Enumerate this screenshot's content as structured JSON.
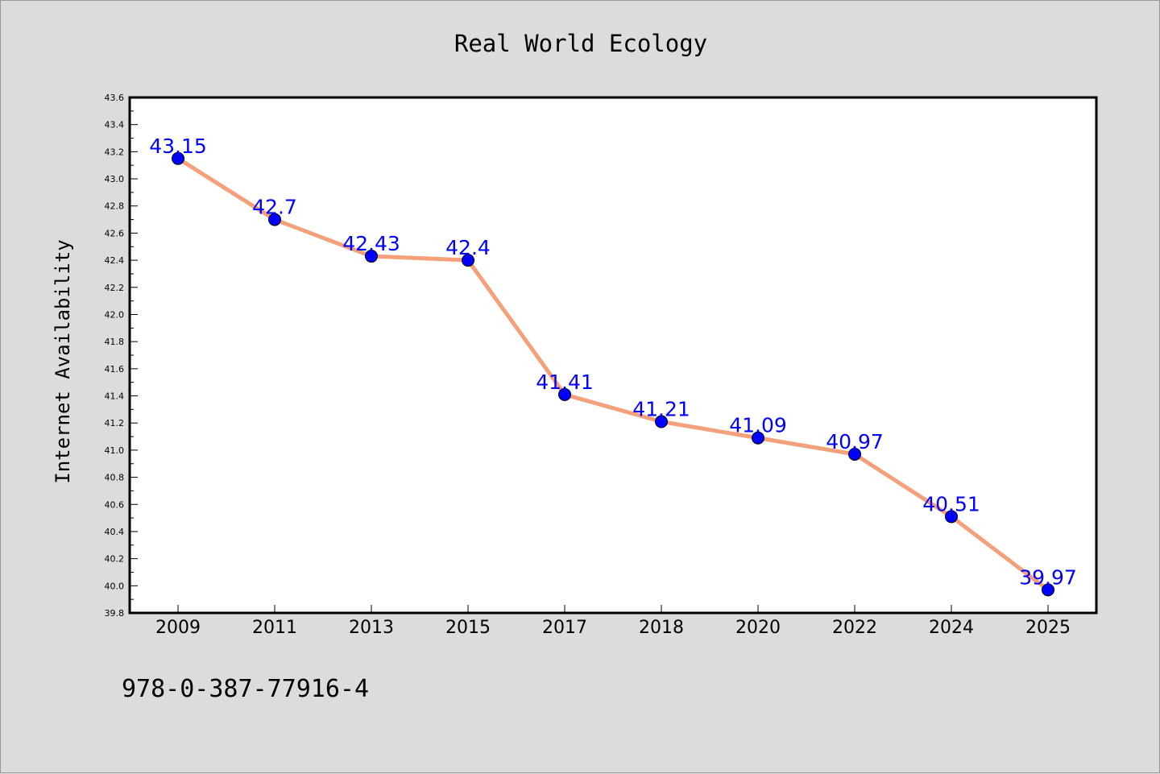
{
  "chart_data": {
    "type": "line",
    "title": "Real World Ecology",
    "xlabel": "",
    "ylabel": "Internet Availability",
    "categories": [
      "2009",
      "2011",
      "2013",
      "2015",
      "2017",
      "2018",
      "2020",
      "2022",
      "2024",
      "2025"
    ],
    "series": [
      {
        "values": [
          43.15,
          42.7,
          42.43,
          42.4,
          41.41,
          41.21,
          41.09,
          40.97,
          40.51,
          39.97
        ],
        "data_labels": [
          "43.15",
          "42.7",
          "42.43",
          "42.4",
          "41.41",
          "41.21",
          "41.09",
          "40.97",
          "40.51",
          "39.97"
        ],
        "line_color": "#f4a07a",
        "marker_color": "#0000ff"
      }
    ],
    "ylim": [
      39.8,
      43.6
    ],
    "yticks": [
      "39.8",
      "40.0",
      "40.2",
      "40.4",
      "40.6",
      "40.8",
      "41.0",
      "41.2",
      "41.4",
      "41.6",
      "41.8",
      "42.0",
      "42.2",
      "42.4",
      "42.6",
      "42.8",
      "43.0",
      "43.2",
      "43.4",
      "43.6"
    ],
    "grid": false,
    "legend": "none",
    "background_color": "#dcdcdc",
    "plot_background": "#ffffff",
    "data_label_color": "#0000ff"
  },
  "annotation": "978-0-387-77916-4"
}
